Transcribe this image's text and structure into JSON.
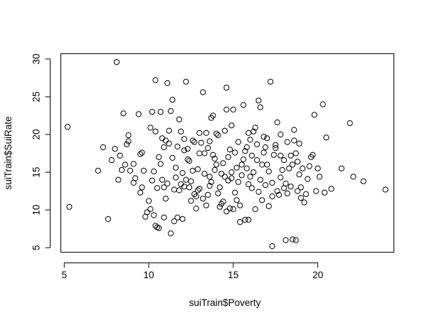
{
  "chart_data": {
    "type": "scatter",
    "xlabel": "suiTrain$Poverty",
    "ylabel": "suiTrain$SuiRate",
    "xlim": [
      4.8,
      24.5
    ],
    "ylim": [
      4.4,
      30.7
    ],
    "xticks": [
      5,
      10,
      15,
      20
    ],
    "yticks": [
      5,
      10,
      15,
      20,
      25,
      30
    ],
    "x_tick_labels": [
      "5",
      "10",
      "15",
      "20"
    ],
    "y_tick_labels": [
      "5",
      "10",
      "15",
      "20",
      "25",
      "30"
    ],
    "grid": false,
    "legend": "none",
    "marker": "open-circle",
    "points": [
      [
        8.1,
        29.6
      ],
      [
        5.2,
        21.0
      ],
      [
        5.3,
        10.4
      ],
      [
        7.0,
        15.2
      ],
      [
        7.3,
        18.3
      ],
      [
        7.6,
        8.8
      ],
      [
        7.8,
        16.6
      ],
      [
        8.0,
        18.1
      ],
      [
        8.2,
        14.0
      ],
      [
        8.3,
        17.2
      ],
      [
        8.4,
        15.3
      ],
      [
        8.5,
        22.8
      ],
      [
        8.6,
        16.0
      ],
      [
        8.7,
        18.7
      ],
      [
        8.8,
        19.9
      ],
      [
        8.9,
        15.2
      ],
      [
        9.1,
        16.1
      ],
      [
        9.2,
        14.2
      ],
      [
        9.4,
        22.7
      ],
      [
        9.5,
        12.3
      ],
      [
        9.6,
        17.6
      ],
      [
        9.7,
        15.2
      ],
      [
        9.8,
        9.1
      ],
      [
        10.0,
        11.2
      ],
      [
        10.1,
        20.9
      ],
      [
        10.2,
        23.0
      ],
      [
        10.3,
        15.1
      ],
      [
        10.4,
        20.4
      ],
      [
        10.4,
        27.2
      ],
      [
        10.5,
        12.9
      ],
      [
        10.6,
        17.0
      ],
      [
        10.7,
        23.0
      ],
      [
        10.8,
        14.0
      ],
      [
        10.9,
        18.3
      ],
      [
        11.0,
        19.2
      ],
      [
        11.1,
        13.5
      ],
      [
        11.2,
        20.5
      ],
      [
        11.3,
        23.1
      ],
      [
        11.4,
        24.6
      ],
      [
        11.1,
        26.8
      ],
      [
        11.5,
        12.7
      ],
      [
        11.6,
        15.6
      ],
      [
        11.7,
        18.4
      ],
      [
        11.8,
        22.0
      ],
      [
        11.9,
        20.4
      ],
      [
        12.0,
        14.9
      ],
      [
        12.1,
        17.9
      ],
      [
        12.2,
        27.0
      ],
      [
        12.3,
        16.7
      ],
      [
        12.4,
        13.0
      ],
      [
        12.5,
        11.2
      ],
      [
        12.6,
        19.2
      ],
      [
        12.7,
        19.0
      ],
      [
        12.8,
        11.8
      ],
      [
        12.9,
        12.6
      ],
      [
        13.0,
        17.5
      ],
      [
        13.1,
        18.9
      ],
      [
        13.2,
        25.6
      ],
      [
        13.3,
        14.8
      ],
      [
        13.4,
        20.2
      ],
      [
        13.5,
        18.2
      ],
      [
        13.6,
        19.1
      ],
      [
        13.7,
        22.2
      ],
      [
        13.8,
        17.3
      ],
      [
        13.9,
        15.3
      ],
      [
        14.0,
        16.0
      ],
      [
        14.1,
        19.9
      ],
      [
        14.2,
        13.0
      ],
      [
        14.3,
        14.8
      ],
      [
        14.4,
        11.1
      ],
      [
        14.5,
        20.5
      ],
      [
        14.6,
        23.3
      ],
      [
        14.6,
        26.2
      ],
      [
        14.7,
        17.0
      ],
      [
        14.8,
        18.0
      ],
      [
        14.9,
        14.2
      ],
      [
        15.0,
        10.1
      ],
      [
        15.1,
        17.6
      ],
      [
        15.2,
        15.6
      ],
      [
        15.3,
        13.7
      ],
      [
        15.4,
        10.6
      ],
      [
        15.5,
        16.0
      ],
      [
        15.6,
        23.9
      ],
      [
        15.7,
        17.8
      ],
      [
        15.8,
        18.3
      ],
      [
        15.9,
        20.2
      ],
      [
        16.0,
        14.4
      ],
      [
        16.1,
        12.9
      ],
      [
        16.2,
        20.4
      ],
      [
        16.3,
        20.9
      ],
      [
        16.4,
        16.6
      ],
      [
        16.5,
        24.5
      ],
      [
        16.6,
        23.6
      ],
      [
        16.7,
        11.3
      ],
      [
        16.8,
        19.7
      ],
      [
        16.9,
        18.3
      ],
      [
        17.0,
        16.0
      ],
      [
        17.1,
        15.1
      ],
      [
        17.2,
        27.0
      ],
      [
        17.3,
        13.6
      ],
      [
        17.4,
        17.3
      ],
      [
        17.5,
        18.6
      ],
      [
        17.6,
        21.6
      ],
      [
        17.7,
        12.0
      ],
      [
        17.8,
        14.3
      ],
      [
        17.9,
        15.3
      ],
      [
        18.0,
        16.6
      ],
      [
        18.1,
        13.5
      ],
      [
        18.2,
        12.2
      ],
      [
        18.3,
        15.5
      ],
      [
        18.4,
        17.2
      ],
      [
        18.5,
        16.0
      ],
      [
        18.6,
        19.2
      ],
      [
        18.7,
        17.5
      ],
      [
        18.8,
        12.5
      ],
      [
        18.9,
        14.7
      ],
      [
        19.0,
        11.6
      ],
      [
        19.1,
        15.5
      ],
      [
        19.3,
        12.1
      ],
      [
        19.5,
        15.8
      ],
      [
        19.7,
        17.3
      ],
      [
        19.8,
        22.6
      ],
      [
        19.9,
        12.5
      ],
      [
        20.1,
        14.4
      ],
      [
        20.3,
        24.0
      ],
      [
        20.4,
        12.3
      ],
      [
        20.5,
        19.6
      ],
      [
        20.8,
        12.8
      ],
      [
        21.4,
        15.5
      ],
      [
        21.9,
        21.5
      ],
      [
        22.1,
        14.4
      ],
      [
        22.7,
        13.8
      ],
      [
        24.0,
        12.7
      ],
      [
        17.3,
        5.2
      ],
      [
        18.1,
        6.0
      ],
      [
        18.5,
        6.1
      ],
      [
        18.7,
        6.0
      ],
      [
        15.7,
        8.7
      ],
      [
        15.9,
        8.7
      ],
      [
        15.4,
        8.4
      ],
      [
        14.6,
        9.8
      ],
      [
        14.8,
        10.2
      ],
      [
        15.1,
        12.3
      ],
      [
        11.3,
        6.9
      ],
      [
        11.5,
        8.5
      ],
      [
        11.7,
        9.0
      ],
      [
        10.5,
        7.7
      ],
      [
        10.6,
        7.6
      ],
      [
        10.4,
        7.9
      ],
      [
        10.9,
        9.0
      ],
      [
        9.9,
        9.7
      ],
      [
        10.1,
        10.1
      ],
      [
        10.3,
        9.3
      ],
      [
        12.0,
        8.8
      ],
      [
        11.8,
        12.6
      ],
      [
        12.1,
        13.1
      ],
      [
        11.9,
        13.4
      ],
      [
        12.2,
        14.0
      ],
      [
        12.5,
        13.8
      ],
      [
        12.7,
        12.1
      ],
      [
        13.4,
        10.6
      ],
      [
        13.0,
        12.8
      ],
      [
        13.2,
        11.5
      ],
      [
        13.7,
        13.7
      ],
      [
        14.3,
        10.8
      ],
      [
        14.5,
        14.4
      ],
      [
        14.9,
        15.0
      ],
      [
        15.8,
        15.5
      ],
      [
        16.2,
        15.0
      ],
      [
        16.6,
        14.0
      ],
      [
        16.9,
        13.3
      ],
      [
        17.6,
        12.5
      ],
      [
        18.4,
        13.1
      ],
      [
        19.2,
        11.0
      ],
      [
        17.1,
        10.5
      ],
      [
        16.3,
        10.1
      ],
      [
        15.2,
        11.3
      ],
      [
        14.1,
        12.2
      ],
      [
        13.6,
        14.4
      ],
      [
        12.9,
        15.4
      ],
      [
        12.4,
        16.5
      ],
      [
        11.6,
        14.3
      ],
      [
        10.9,
        13.0
      ],
      [
        10.2,
        13.9
      ],
      [
        9.6,
        13.0
      ],
      [
        10.7,
        16.1
      ],
      [
        11.4,
        16.9
      ],
      [
        12.3,
        18.1
      ],
      [
        13.3,
        17.5
      ],
      [
        13.9,
        16.8
      ],
      [
        14.4,
        16.2
      ],
      [
        15.6,
        16.7
      ],
      [
        16.1,
        17.2
      ],
      [
        16.8,
        17.6
      ],
      [
        17.5,
        18.2
      ],
      [
        18.2,
        19.0
      ],
      [
        18.9,
        18.8
      ],
      [
        19.6,
        17.0
      ],
      [
        16.0,
        19.3
      ],
      [
        15.3,
        19.0
      ],
      [
        14.9,
        21.2
      ],
      [
        14.0,
        20.1
      ],
      [
        13.0,
        20.2
      ],
      [
        12.1,
        19.4
      ],
      [
        11.2,
        18.8
      ],
      [
        10.8,
        19.5
      ],
      [
        16.4,
        18.7
      ],
      [
        17.0,
        19.5
      ],
      [
        17.8,
        20.0
      ],
      [
        18.6,
        20.6
      ],
      [
        13.8,
        22.5
      ],
      [
        15.0,
        23.3
      ],
      [
        9.1,
        13.6
      ],
      [
        9.5,
        17.4
      ],
      [
        8.8,
        19.1
      ],
      [
        12.6,
        15.2
      ],
      [
        13.6,
        13.2
      ],
      [
        14.7,
        13.9
      ],
      [
        15.5,
        14.6
      ],
      [
        16.5,
        12.4
      ],
      [
        17.3,
        11.8
      ],
      [
        18.0,
        12.9
      ],
      [
        19.4,
        14.1
      ],
      [
        20.0,
        15.5
      ],
      [
        11.0,
        11.5
      ],
      [
        12.8,
        10.2
      ],
      [
        13.5,
        12.0
      ],
      [
        14.2,
        10.4
      ],
      [
        15.9,
        13.4
      ],
      [
        16.7,
        16.0
      ],
      [
        17.8,
        17.2
      ],
      [
        18.8,
        16.4
      ],
      [
        19.0,
        13.0
      ]
    ]
  }
}
